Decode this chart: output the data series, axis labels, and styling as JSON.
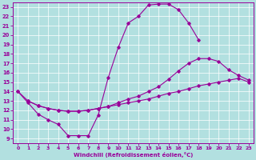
{
  "xlabel": "Windchill (Refroidissement éolien,°C)",
  "xlim": [
    -0.5,
    23.5
  ],
  "ylim": [
    8.5,
    23.5
  ],
  "yticks": [
    9,
    10,
    11,
    12,
    13,
    14,
    15,
    16,
    17,
    18,
    19,
    20,
    21,
    22,
    23
  ],
  "xticks": [
    0,
    1,
    2,
    3,
    4,
    5,
    6,
    7,
    8,
    9,
    10,
    11,
    12,
    13,
    14,
    15,
    16,
    17,
    18,
    19,
    20,
    21,
    22,
    23
  ],
  "bg_color": "#b2e0e0",
  "line_color": "#990099",
  "grid_color": "#ffffff",
  "curve1_x": [
    0,
    1,
    2,
    3,
    4,
    5,
    6,
    7,
    8,
    9,
    10,
    11,
    12,
    13,
    14,
    15,
    16,
    17,
    18
  ],
  "curve1_y": [
    14.0,
    12.8,
    11.6,
    11.0,
    10.5,
    9.3,
    9.3,
    9.3,
    11.5,
    15.5,
    18.7,
    21.3,
    22.0,
    23.2,
    23.3,
    23.3,
    22.7,
    21.3,
    19.5
  ],
  "curve2_x": [
    0,
    1,
    2,
    3,
    4,
    5,
    6,
    7,
    8,
    9,
    10,
    11,
    12,
    13,
    14,
    15,
    16,
    17,
    18,
    19,
    20,
    21,
    22,
    23
  ],
  "curve2_y": [
    14.0,
    13.0,
    12.5,
    12.2,
    12.0,
    11.9,
    11.9,
    12.0,
    12.2,
    12.4,
    12.6,
    12.8,
    13.0,
    13.2,
    13.5,
    13.8,
    14.0,
    14.3,
    14.6,
    14.8,
    15.0,
    15.2,
    15.4,
    15.0
  ],
  "curve3_x": [
    1,
    2,
    3,
    4,
    5,
    6,
    7,
    8,
    9,
    10,
    11,
    12,
    13,
    14,
    15,
    16,
    17,
    18,
    19,
    20,
    21,
    22,
    23
  ],
  "curve3_y": [
    13.0,
    12.5,
    12.2,
    12.0,
    11.9,
    11.9,
    12.0,
    12.2,
    12.4,
    12.8,
    13.2,
    13.5,
    14.0,
    14.5,
    15.3,
    16.2,
    17.0,
    17.5,
    17.5,
    17.2,
    16.3,
    15.7,
    15.2
  ]
}
